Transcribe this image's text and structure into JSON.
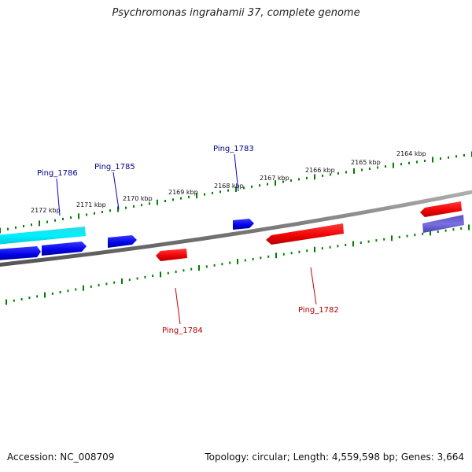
{
  "title": "Psychromonas ingrahamii 37, complete genome",
  "footer": {
    "accession": "Accession: NC_008709",
    "summary": "Topology: circular; Length: 4,559,598 bp; Genes: 3,664"
  },
  "ruler": {
    "labels": [
      "2164 kbp",
      "2165 kbp",
      "2166 kbp",
      "2167 kbp",
      "2168 kbp",
      "2169 kbp",
      "2170 kbp",
      "2171 kbp",
      "2172 kbp"
    ]
  },
  "genes": {
    "forward": [
      {
        "label": "Ping_1783",
        "color": "#00008b"
      },
      {
        "label": "Ping_1785",
        "color": "#00008b"
      },
      {
        "label": "Ping_1786",
        "color": "#00008b"
      }
    ],
    "reverse": [
      {
        "label": "Ping_1782",
        "color": "#b00000"
      },
      {
        "label": "Ping_1784",
        "color": "#b00000"
      }
    ]
  },
  "colors": {
    "forward_gene": "#0000ee",
    "reverse_gene": "#ee0000",
    "cyan_feature": "#00e5ee",
    "purple_feature": "#6a5acd",
    "backbone": "#808080",
    "tick": "#008000"
  }
}
